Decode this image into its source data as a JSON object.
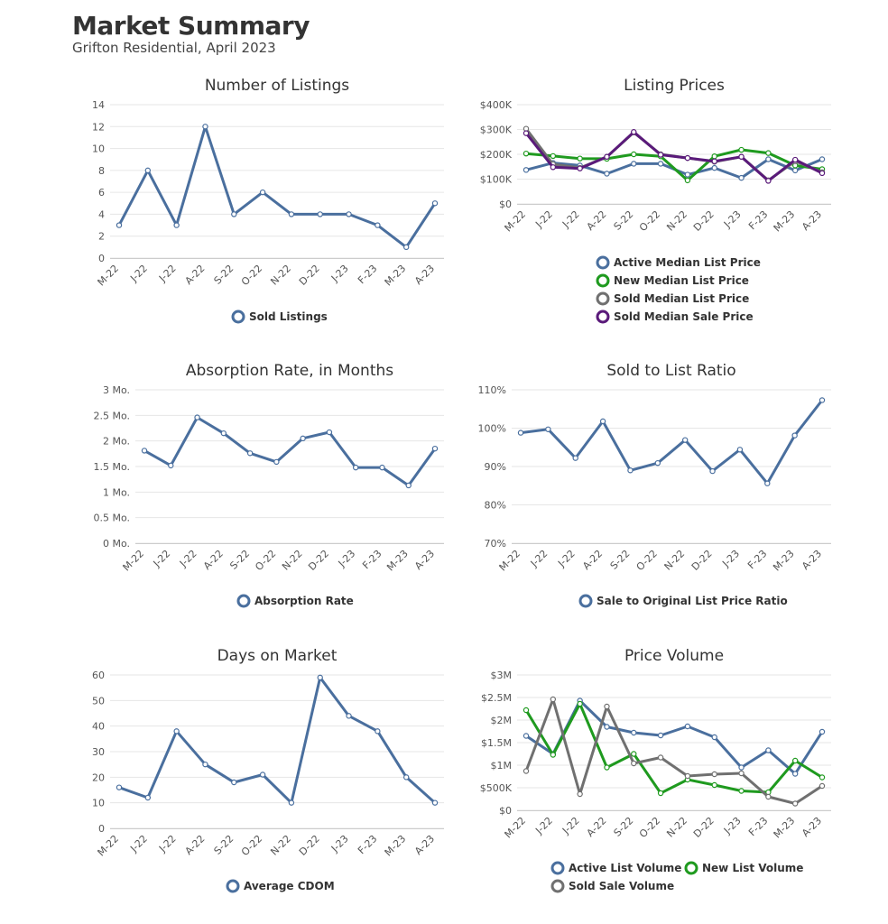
{
  "header": {
    "title": "Market Summary",
    "subtitle": "Grifton Residential, April 2023"
  },
  "chart_data": [
    {
      "type": "line",
      "title": "Number of Listings",
      "categories": [
        "M-22",
        "J-22",
        "J-22",
        "A-22",
        "S-22",
        "O-22",
        "N-22",
        "D-22",
        "J-23",
        "F-23",
        "M-23",
        "A-23"
      ],
      "ylim": [
        0,
        14
      ],
      "yticks": [
        0,
        2,
        4,
        6,
        8,
        10,
        12,
        14
      ],
      "ytick_labels": [
        "0",
        "2",
        "4",
        "6",
        "8",
        "10",
        "12",
        "14"
      ],
      "grid": true,
      "legend_position": "bottom",
      "series": [
        {
          "name": "Sold Listings",
          "color": "#4a6f9e",
          "values": [
            3,
            8,
            3,
            12,
            4,
            6,
            4,
            4,
            4,
            3,
            1,
            5
          ]
        }
      ]
    },
    {
      "type": "line",
      "title": "Listing Prices",
      "categories": [
        "M-22",
        "J-22",
        "J-22",
        "A-22",
        "S-22",
        "O-22",
        "N-22",
        "D-22",
        "J-23",
        "F-23",
        "M-23",
        "A-23"
      ],
      "ylim": [
        0,
        400000
      ],
      "yticks": [
        0,
        100000,
        200000,
        300000,
        400000
      ],
      "ytick_labels": [
        "$0",
        "$100K",
        "$200K",
        "$300K",
        "$400K"
      ],
      "grid": true,
      "legend_position": "bottom",
      "series": [
        {
          "name": "Active Median List Price",
          "color": "#4a6f9e",
          "values": [
            137000,
            165000,
            155000,
            122000,
            162000,
            162000,
            118000,
            145000,
            105000,
            180000,
            135000,
            180000
          ]
        },
        {
          "name": "New Median List Price",
          "color": "#1f9a1f",
          "values": [
            203000,
            193000,
            183000,
            182000,
            200000,
            192000,
            95000,
            192000,
            218000,
            205000,
            155000,
            140000
          ]
        },
        {
          "name": "Sold Median List Price",
          "color": "#707070",
          "values": [
            303000,
            160000,
            145000,
            190000,
            288000,
            200000,
            185000,
            170000,
            190000,
            95000,
            172000,
            128000
          ]
        },
        {
          "name": "Sold Median Sale Price",
          "color": "#5a1a7a",
          "values": [
            285000,
            148000,
            143000,
            190000,
            290000,
            198000,
            185000,
            172000,
            190000,
            93000,
            178000,
            124000
          ]
        }
      ]
    },
    {
      "type": "line",
      "title": "Absorption Rate, in Months",
      "categories": [
        "M-22",
        "J-22",
        "J-22",
        "A-22",
        "S-22",
        "O-22",
        "N-22",
        "D-22",
        "J-23",
        "F-23",
        "M-23",
        "A-23"
      ],
      "ylim": [
        0,
        3
      ],
      "yticks": [
        0,
        0.5,
        1,
        1.5,
        2,
        2.5,
        3
      ],
      "ytick_labels": [
        "0 Mo.",
        "0.5 Mo.",
        "1 Mo.",
        "1.5 Mo.",
        "2 Mo.",
        "2.5 Mo.",
        "3 Mo."
      ],
      "grid": true,
      "legend_position": "bottom",
      "series": [
        {
          "name": "Absorption Rate",
          "color": "#4a6f9e",
          "values": [
            1.81,
            1.52,
            2.46,
            2.15,
            1.76,
            1.59,
            2.05,
            2.17,
            1.48,
            1.48,
            1.13,
            1.85
          ]
        }
      ]
    },
    {
      "type": "line",
      "title": "Sold to List Ratio",
      "categories": [
        "M-22",
        "J-22",
        "J-22",
        "A-22",
        "S-22",
        "O-22",
        "N-22",
        "D-22",
        "J-23",
        "F-23",
        "M-23",
        "A-23"
      ],
      "ylim": [
        70,
        110
      ],
      "yticks": [
        70,
        80,
        90,
        100,
        110
      ],
      "ytick_labels": [
        "70%",
        "80%",
        "90%",
        "100%",
        "110%"
      ],
      "grid": true,
      "legend_position": "bottom",
      "series": [
        {
          "name": "Sale to Original List Price Ratio",
          "color": "#4a6f9e",
          "values": [
            98.8,
            99.7,
            92.2,
            101.8,
            89.0,
            90.9,
            96.9,
            88.8,
            94.4,
            85.6,
            98.1,
            107.3
          ]
        }
      ]
    },
    {
      "type": "line",
      "title": "Days on Market",
      "categories": [
        "M-22",
        "J-22",
        "J-22",
        "A-22",
        "S-22",
        "O-22",
        "N-22",
        "D-22",
        "J-23",
        "F-23",
        "M-23",
        "A-23"
      ],
      "ylim": [
        0,
        60
      ],
      "yticks": [
        0,
        10,
        20,
        30,
        40,
        50,
        60
      ],
      "ytick_labels": [
        "0",
        "10",
        "20",
        "30",
        "40",
        "50",
        "60"
      ],
      "grid": true,
      "legend_position": "bottom",
      "series": [
        {
          "name": "Average CDOM",
          "color": "#4a6f9e",
          "values": [
            16,
            12,
            38,
            25,
            18,
            21,
            10,
            59,
            44,
            38,
            20,
            10
          ]
        }
      ]
    },
    {
      "type": "line",
      "title": "Price Volume",
      "categories": [
        "M-22",
        "J-22",
        "J-22",
        "A-22",
        "S-22",
        "O-22",
        "N-22",
        "D-22",
        "J-23",
        "F-23",
        "M-23",
        "A-23"
      ],
      "ylim": [
        0,
        3000000
      ],
      "yticks": [
        0,
        500000,
        1000000,
        1500000,
        2000000,
        2500000,
        3000000
      ],
      "ytick_labels": [
        "$0",
        "$500K",
        "$1M",
        "$1.5M",
        "$2M",
        "$2.5M",
        "$3M"
      ],
      "grid": true,
      "legend_position": "bottom",
      "series": [
        {
          "name": "Active List Volume",
          "color": "#4a6f9e",
          "values": [
            1650000,
            1250000,
            2430000,
            1850000,
            1720000,
            1660000,
            1860000,
            1620000,
            950000,
            1330000,
            810000,
            1740000
          ]
        },
        {
          "name": "New List Volume",
          "color": "#1f9a1f",
          "values": [
            2220000,
            1230000,
            2360000,
            950000,
            1250000,
            380000,
            680000,
            560000,
            430000,
            400000,
            1100000,
            730000
          ]
        },
        {
          "name": "Sold Sale Volume",
          "color": "#707070",
          "values": [
            870000,
            2460000,
            360000,
            2300000,
            1040000,
            1170000,
            760000,
            800000,
            820000,
            300000,
            150000,
            540000
          ]
        }
      ]
    }
  ]
}
